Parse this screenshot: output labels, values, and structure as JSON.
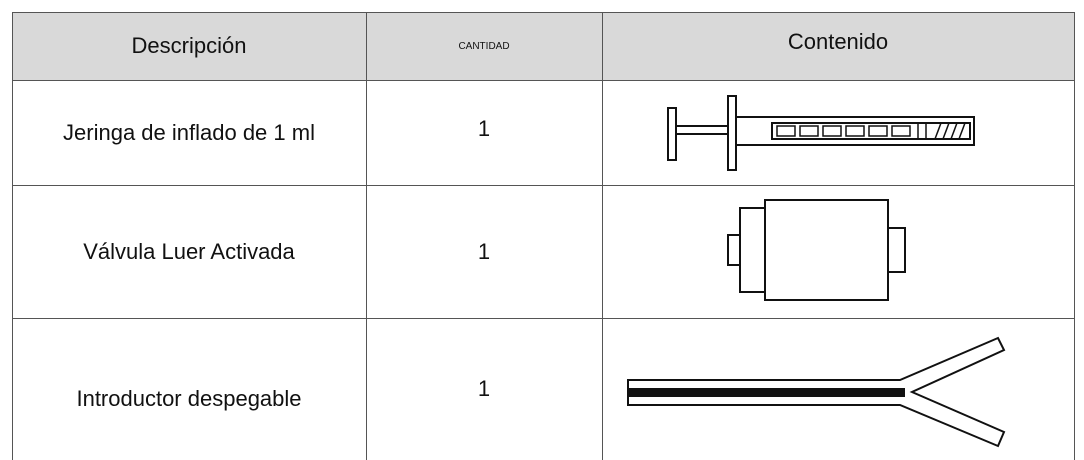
{
  "table": {
    "header": [
      "Descripción",
      "CANTIDAD",
      "Contenido"
    ],
    "rows": [
      [
        "Jeringa de inflado de 1 ml",
        1
      ],
      [
        "Válvula Luer Activada",
        1
      ],
      [
        "Introductor despegable",
        1
      ]
    ]
  }
}
